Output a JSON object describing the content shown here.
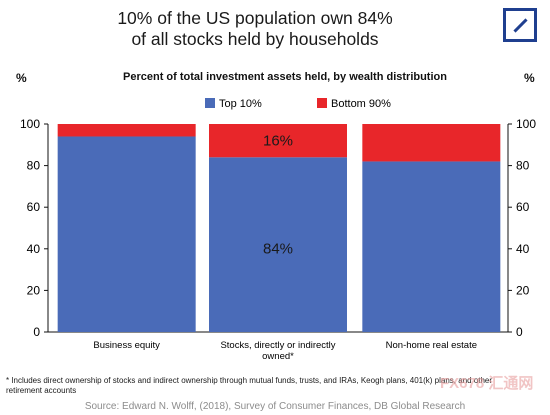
{
  "headline": [
    "10% of the US population own 84%",
    "of all stocks held by households"
  ],
  "logo": {
    "icon": "deutsche-bank-slash-logo",
    "color": "#1f3f8f"
  },
  "chart_data": {
    "type": "bar",
    "stacked": true,
    "title": "Percent of total investment assets held, by wealth distribution",
    "y_unit_left": "%",
    "y_unit_right": "%",
    "ylim": [
      0,
      100
    ],
    "yticks": [
      0,
      20,
      40,
      60,
      80,
      100
    ],
    "categories": [
      [
        "Business equity"
      ],
      [
        "Stocks, directly or indirectly",
        "owned*"
      ],
      [
        "Non-home real estate"
      ]
    ],
    "series": [
      {
        "name": "Top 10%",
        "color": "#4a6bb8",
        "values": [
          94,
          84,
          82
        ]
      },
      {
        "name": "Bottom 90%",
        "color": "#e8262a",
        "values": [
          6,
          16,
          18
        ]
      }
    ],
    "data_labels": [
      {
        "category": 1,
        "series": 1,
        "text": "16%"
      },
      {
        "category": 1,
        "series": 0,
        "text": "84%"
      }
    ],
    "legend_position": "top-center",
    "grid": false
  },
  "footnote": "* Includes direct ownership of stocks and indirect ownership through mutual funds, trusts, and IRAs, Keogh plans, 401(k) plans, and other retirement accounts",
  "source": "Source: Edward N. Wolff, (2018), Survey of Consumer Finances, DB Global Research",
  "watermark": "FX678 汇通网"
}
